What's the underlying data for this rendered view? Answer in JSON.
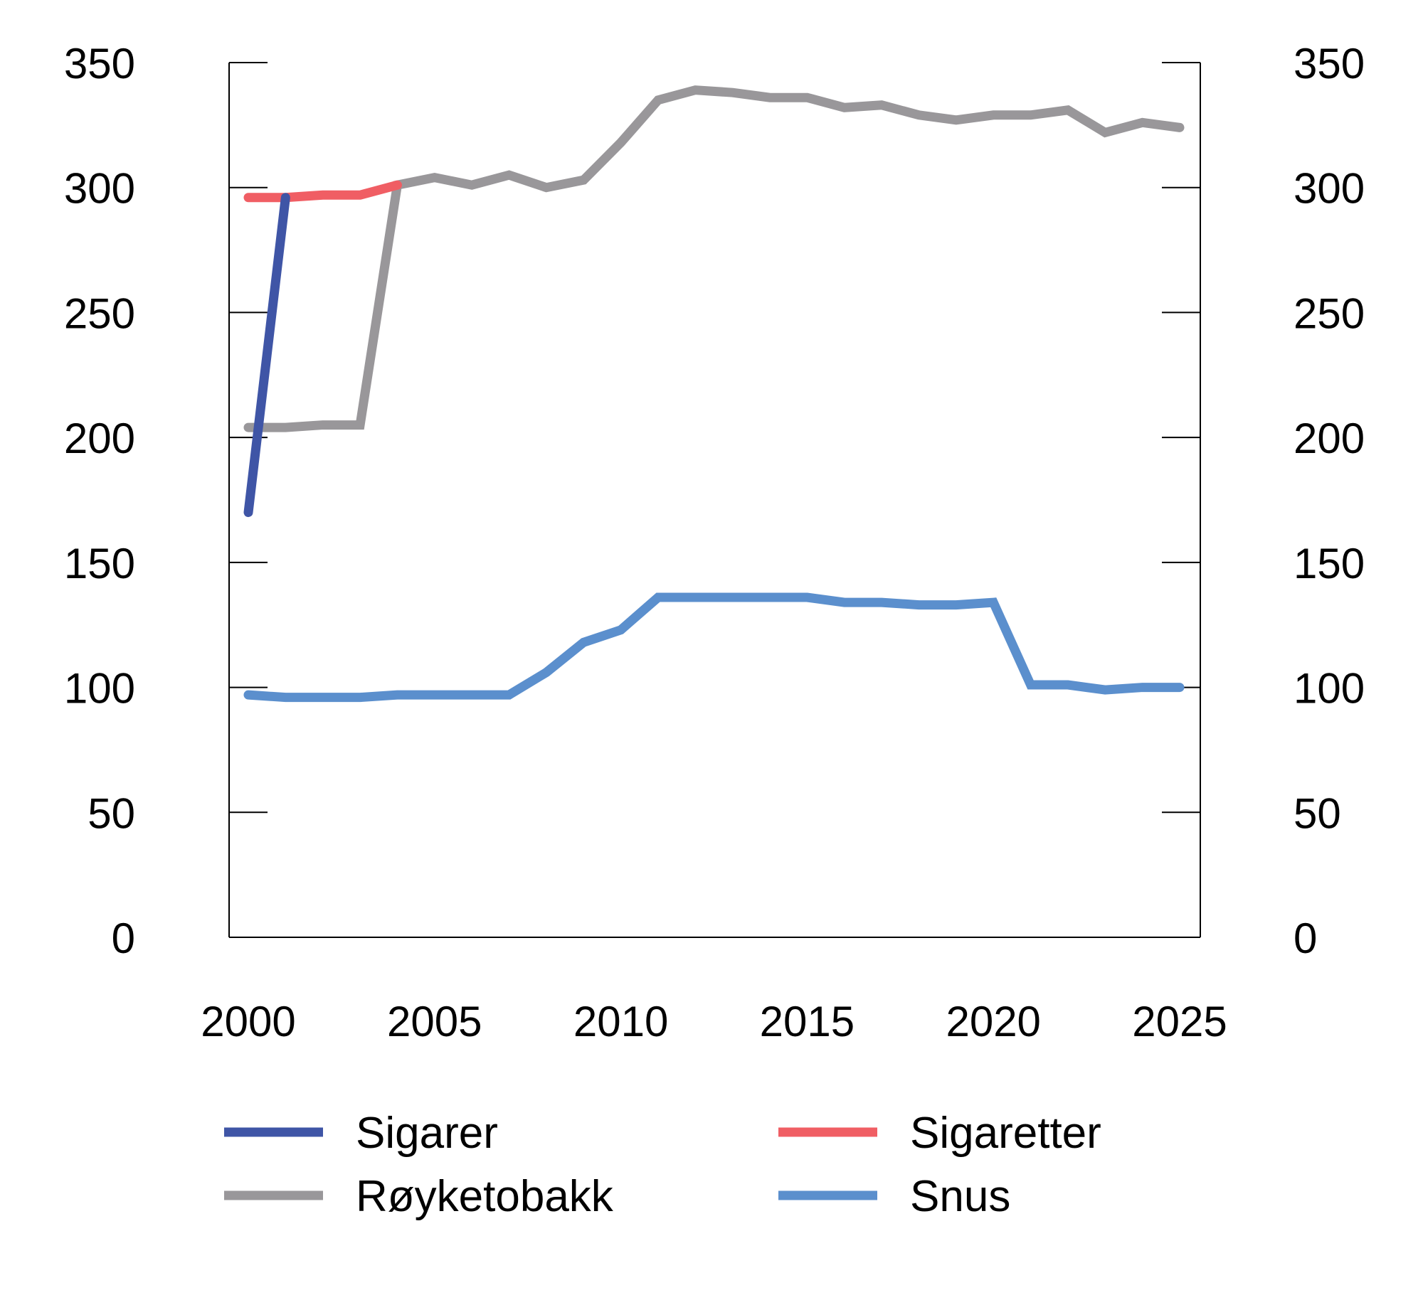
{
  "chart_data": {
    "type": "line",
    "x": [
      2000,
      2001,
      2002,
      2003,
      2004,
      2005,
      2006,
      2007,
      2008,
      2009,
      2010,
      2011,
      2012,
      2013,
      2014,
      2015,
      2016,
      2017,
      2018,
      2019,
      2020,
      2021,
      2022,
      2023,
      2024,
      2025
    ],
    "xlim": [
      2000,
      2025
    ],
    "x_ticks": [
      "2000",
      "2005",
      "2010",
      "2015",
      "2020",
      "2025"
    ],
    "ylim": [
      0,
      350
    ],
    "y_ticks": [
      "0",
      "50",
      "100",
      "150",
      "200",
      "250",
      "300",
      "350"
    ],
    "y_axis_right_duplicate": true,
    "grid": false,
    "legend_position": "bottom",
    "series": [
      {
        "name": "Sigarer",
        "color": "#3f55a6",
        "values": [
          170,
          296,
          null,
          null,
          null,
          null,
          null,
          null,
          null,
          null,
          null,
          null,
          null,
          null,
          null,
          null,
          null,
          null,
          null,
          null,
          null,
          null,
          null,
          null,
          null,
          null
        ]
      },
      {
        "name": "Sigaretter",
        "color": "#f05e64",
        "values": [
          296,
          296,
          297,
          297,
          301,
          null,
          null,
          null,
          null,
          null,
          null,
          null,
          null,
          null,
          null,
          null,
          null,
          null,
          null,
          null,
          null,
          null,
          null,
          null,
          null,
          null
        ]
      },
      {
        "name": "Røyketobakk",
        "color": "#99979a",
        "values": [
          204,
          204,
          205,
          205,
          301,
          304,
          301,
          305,
          300,
          303,
          318,
          335,
          339,
          338,
          336,
          336,
          332,
          333,
          329,
          327,
          329,
          329,
          331,
          322,
          326,
          324
        ]
      },
      {
        "name": "Snus",
        "color": "#5b8fcd",
        "values": [
          97,
          96,
          96,
          96,
          97,
          97,
          97,
          97,
          106,
          118,
          123,
          136,
          136,
          136,
          136,
          136,
          134,
          134,
          133,
          133,
          134,
          101,
          101,
          99,
          100,
          100
        ]
      }
    ]
  }
}
